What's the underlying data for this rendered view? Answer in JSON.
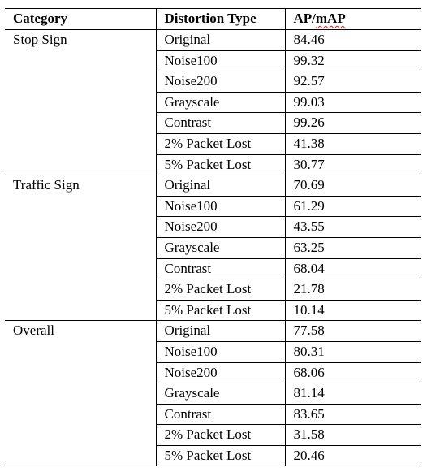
{
  "table": {
    "headers": {
      "category": "Category",
      "distortion": "Distortion Type",
      "metric_prefix": "AP/",
      "metric_suffix": "mAP"
    },
    "groups": [
      {
        "category": "Stop Sign",
        "rows": [
          {
            "distortion": "Original",
            "value": "84.46"
          },
          {
            "distortion": "Noise100",
            "value": "99.32"
          },
          {
            "distortion": "Noise200",
            "value": "92.57"
          },
          {
            "distortion": "Grayscale",
            "value": "99.03"
          },
          {
            "distortion": "Contrast",
            "value": "99.26"
          },
          {
            "distortion": "2% Packet Lost",
            "value": "41.38"
          },
          {
            "distortion": "5% Packet Lost",
            "value": "30.77"
          }
        ]
      },
      {
        "category": "Traffic Sign",
        "rows": [
          {
            "distortion": "Original",
            "value": "70.69"
          },
          {
            "distortion": "Noise100",
            "value": "61.29"
          },
          {
            "distortion": "Noise200",
            "value": "43.55"
          },
          {
            "distortion": "Grayscale",
            "value": "63.25"
          },
          {
            "distortion": "Contrast",
            "value": "68.04"
          },
          {
            "distortion": "2% Packet Lost",
            "value": "21.78"
          },
          {
            "distortion": "5% Packet Lost",
            "value": "10.14"
          }
        ]
      },
      {
        "category": "Overall",
        "rows": [
          {
            "distortion": "Original",
            "value": "77.58"
          },
          {
            "distortion": "Noise100",
            "value": "80.31"
          },
          {
            "distortion": "Noise200",
            "value": "68.06"
          },
          {
            "distortion": "Grayscale",
            "value": "81.14"
          },
          {
            "distortion": "Contrast",
            "value": "83.65"
          },
          {
            "distortion": "2% Packet Lost",
            "value": "31.58"
          },
          {
            "distortion": "5% Packet Lost",
            "value": "20.46"
          }
        ]
      }
    ]
  }
}
